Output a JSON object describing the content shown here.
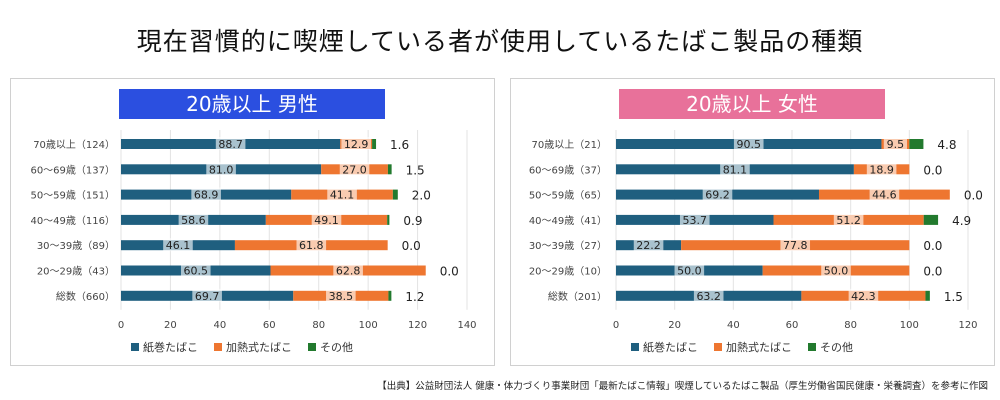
{
  "page": {
    "title": "現在習慣的に喫煙している者が使用しているたばこ製品の種類",
    "source": "【出典】公益財団法人 健康・体力づくり事業財団「最新たばこ情報」喫煙しているたばこ製品（厚生労働省国民健康・栄養調査）を参考に作図"
  },
  "chart_data": [
    {
      "type": "bar",
      "orientation": "horizontal",
      "stacked": true,
      "title": "20歳以上 男性",
      "title_color": "#2B4FE0",
      "categories": [
        "70歳以上（124）",
        "60〜69歳（137）",
        "50〜59歳（151）",
        "40〜49歳（116）",
        "30〜39歳（89）",
        "20〜29歳（43）",
        "総数（660）"
      ],
      "series": [
        {
          "name": "紙巻たばこ",
          "color": "#1F5F7F",
          "values": [
            88.7,
            81.0,
            68.9,
            58.6,
            46.1,
            60.5,
            69.7
          ]
        },
        {
          "name": "加熱式たばこ",
          "color": "#EE7630",
          "values": [
            12.9,
            27.0,
            41.1,
            49.1,
            61.8,
            62.8,
            38.5
          ]
        },
        {
          "name": "その他",
          "color": "#227A2E",
          "values": [
            1.6,
            1.5,
            2.0,
            0.9,
            0.0,
            0.0,
            1.2
          ]
        }
      ],
      "xlim": [
        0,
        140
      ],
      "xticks": [
        0,
        20,
        40,
        60,
        80,
        100,
        120,
        140
      ],
      "legend": "bottom",
      "grid": true
    },
    {
      "type": "bar",
      "orientation": "horizontal",
      "stacked": true,
      "title": "20歳以上 女性",
      "title_color": "#E8719A",
      "categories": [
        "70歳以上（21）",
        "60〜69歳（37）",
        "50〜59歳（65）",
        "40〜49歳（41）",
        "30〜39歳（27）",
        "20〜29歳（10）",
        "総数（201）"
      ],
      "series": [
        {
          "name": "紙巻たばこ",
          "color": "#1F5F7F",
          "values": [
            90.5,
            81.1,
            69.2,
            53.7,
            22.2,
            50.0,
            63.2
          ]
        },
        {
          "name": "加熱式たばこ",
          "color": "#EE7630",
          "values": [
            9.5,
            18.9,
            44.6,
            51.2,
            77.8,
            50.0,
            42.3
          ]
        },
        {
          "name": "その他",
          "color": "#227A2E",
          "values": [
            4.8,
            0.0,
            0.0,
            4.9,
            0.0,
            0.0,
            1.5
          ]
        }
      ],
      "xlim": [
        0,
        120
      ],
      "xticks": [
        0,
        20,
        40,
        60,
        80,
        100,
        120
      ],
      "legend": "bottom",
      "grid": true
    }
  ]
}
